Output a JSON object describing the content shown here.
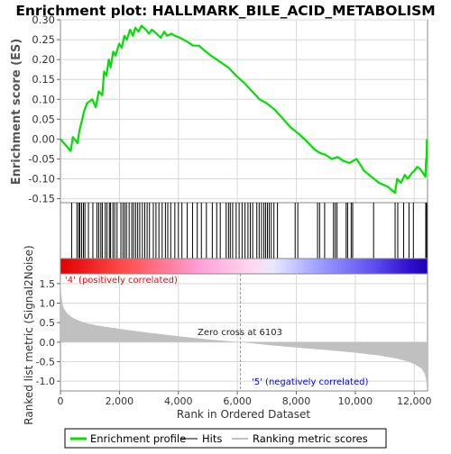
{
  "chart_data": [
    {
      "panel": "enrichment",
      "type": "line",
      "title": "Enrichment plot: HALLMARK_BILE_ACID_METABOLISM",
      "xlabel": "",
      "ylabel": "Enrichment score (ES)",
      "xlim": [
        0,
        12450
      ],
      "ylim": [
        -0.16,
        0.3
      ],
      "yticks": [
        -0.15,
        -0.1,
        -0.05,
        0.0,
        0.05,
        0.1,
        0.15,
        0.2,
        0.25,
        0.3
      ],
      "ytick_labels": [
        "-0.15",
        "-0.10",
        "-0.05",
        "0.00",
        "0.05",
        "0.10",
        "0.15",
        "0.20",
        "0.25",
        "0.30"
      ],
      "grid": true,
      "line_color": "#00e000",
      "series": [
        {
          "name": "Enrichment profile",
          "x": [
            0,
            350,
            420,
            580,
            640,
            740,
            800,
            900,
            1080,
            1200,
            1300,
            1420,
            1480,
            1560,
            1640,
            1700,
            1790,
            1870,
            1990,
            2080,
            2170,
            2250,
            2360,
            2460,
            2540,
            2650,
            2750,
            2900,
            3000,
            3100,
            3260,
            3400,
            3520,
            3620,
            3770,
            3880,
            4050,
            4300,
            4500,
            4700,
            4850,
            5100,
            5300,
            5500,
            5700,
            5950,
            6250,
            6500,
            6750,
            7000,
            7250,
            7500,
            7800,
            8050,
            8350,
            8600,
            8800,
            9000,
            9200,
            9400,
            9600,
            9800,
            10050,
            10300,
            10550,
            10800,
            11100,
            11350,
            11420,
            11550,
            11680,
            11780,
            11920,
            12000,
            12100,
            12200,
            12380,
            12400,
            12420,
            12430
          ],
          "y": [
            0.0,
            -0.03,
            0.005,
            -0.01,
            0.02,
            0.05,
            0.07,
            0.09,
            0.1,
            0.08,
            0.12,
            0.11,
            0.17,
            0.16,
            0.2,
            0.18,
            0.22,
            0.21,
            0.24,
            0.23,
            0.26,
            0.25,
            0.275,
            0.26,
            0.28,
            0.27,
            0.285,
            0.275,
            0.265,
            0.275,
            0.265,
            0.255,
            0.27,
            0.26,
            0.265,
            0.26,
            0.255,
            0.245,
            0.235,
            0.235,
            0.225,
            0.21,
            0.2,
            0.19,
            0.18,
            0.16,
            0.14,
            0.12,
            0.1,
            0.09,
            0.075,
            0.055,
            0.03,
            0.015,
            -0.005,
            -0.025,
            -0.035,
            -0.04,
            -0.05,
            -0.045,
            -0.055,
            -0.06,
            -0.05,
            -0.08,
            -0.095,
            -0.11,
            -0.12,
            -0.135,
            -0.1,
            -0.11,
            -0.09,
            -0.1,
            -0.085,
            -0.08,
            -0.07,
            -0.075,
            -0.095,
            -0.05,
            -0.055,
            0.0
          ]
        }
      ]
    },
    {
      "panel": "hits",
      "type": "scatter",
      "xlim": [
        0,
        12450
      ],
      "label": "Hits",
      "x": [
        380,
        560,
        620,
        660,
        720,
        780,
        830,
        950,
        1100,
        1240,
        1300,
        1370,
        1420,
        1520,
        1580,
        1660,
        1700,
        1780,
        1840,
        1920,
        2050,
        2120,
        2180,
        2240,
        2330,
        2420,
        2480,
        2550,
        2620,
        2690,
        2780,
        2860,
        2940,
        3020,
        3150,
        3240,
        3340,
        3450,
        3560,
        3640,
        3740,
        3880,
        4000,
        4120,
        4300,
        4480,
        4640,
        4780,
        4950,
        5150,
        5300,
        5420,
        5620,
        5700,
        5760,
        5840,
        5960,
        6060,
        6160,
        6260,
        6360,
        6440,
        6520,
        6660,
        6740,
        6820,
        6900,
        6960,
        7020,
        7080,
        7150,
        7240,
        7360,
        7960,
        8050,
        8720,
        8790,
        8960,
        9260,
        9320,
        9380,
        9690,
        9740,
        9860,
        9910,
        10620,
        11350,
        11440,
        11640,
        11820,
        11970,
        12390,
        12420
      ]
    },
    {
      "panel": "ranking",
      "type": "area",
      "xlabel": "Rank in Ordered Dataset",
      "ylabel": "Ranked list metric (Signal2Noise)",
      "xlim": [
        0,
        12450
      ],
      "ylim": [
        -1.25,
        1.75
      ],
      "yticks": [
        -1.0,
        -0.5,
        0.0,
        0.5,
        1.0,
        1.5
      ],
      "ytick_labels": [
        "-1.0",
        "-0.5",
        "0.0",
        "0.5",
        "1.0",
        "1.5"
      ],
      "xticks": [
        0,
        2000,
        4000,
        6000,
        8000,
        10000,
        12000
      ],
      "xtick_labels": [
        "0",
        "2,000",
        "4,000",
        "6,000",
        "8,000",
        "10,000",
        "12,000"
      ],
      "grid": true,
      "fill_color": "#c0c0c0",
      "x": [
        0,
        30,
        80,
        150,
        250,
        400,
        600,
        900,
        1300,
        2000,
        3000,
        4000,
        5000,
        6103,
        7000,
        8000,
        9000,
        10000,
        10800,
        11400,
        11800,
        12050,
        12250,
        12350,
        12400,
        12430,
        12450
      ],
      "y": [
        1.65,
        1.2,
        0.95,
        0.82,
        0.72,
        0.63,
        0.56,
        0.48,
        0.42,
        0.34,
        0.24,
        0.15,
        0.07,
        0.0,
        -0.07,
        -0.14,
        -0.2,
        -0.27,
        -0.34,
        -0.42,
        -0.5,
        -0.58,
        -0.68,
        -0.8,
        -0.95,
        -1.18,
        -1.2
      ],
      "annotations": {
        "zero_cross": "Zero cross at 6103",
        "zero_cross_x": 6103,
        "positive": "'4' (positively correlated)",
        "negative": "'5' (negatively correlated)",
        "positive_color": "#ff0000",
        "negative_color": "#0000ff"
      }
    }
  ],
  "legend": {
    "items": [
      {
        "label": "Enrichment profile",
        "color": "#00e000"
      },
      {
        "label": "Hits",
        "color": "#000000"
      },
      {
        "label": "Ranking metric scores",
        "color": "#c0c0c0"
      }
    ]
  },
  "colors": {
    "gradient_stops": [
      "#e00000",
      "#ff6060",
      "#ffb0e0",
      "#e0e0ff",
      "#8080ff",
      "#4040e0",
      "#2000c0"
    ]
  }
}
